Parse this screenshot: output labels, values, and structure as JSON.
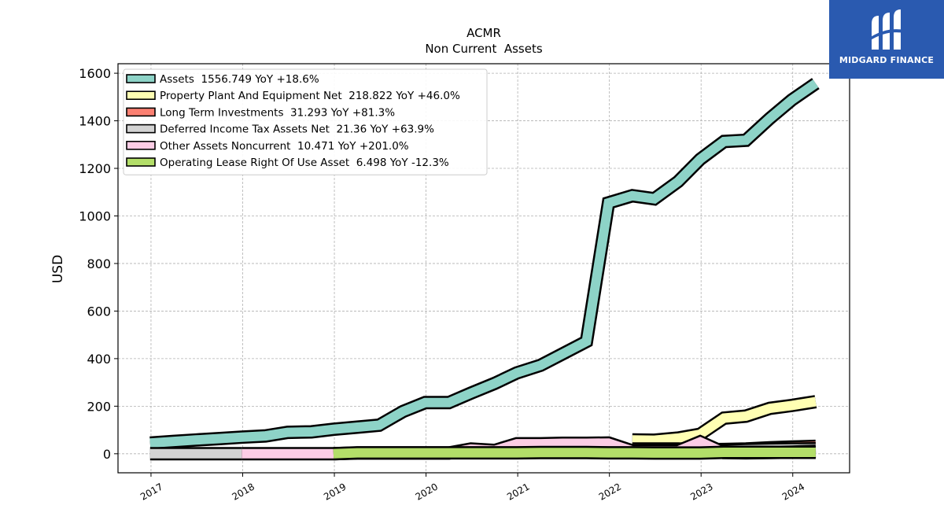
{
  "brand": {
    "name": "MIDGARD FINANCE",
    "icon": "midgard-logo-icon",
    "color": "#2a5ab0"
  },
  "chart_data": {
    "type": "area",
    "title": "ACMR",
    "subtitle": "Non Current  Assets",
    "ylabel": "USD",
    "xlabel": "",
    "ylim": [
      -80,
      1640
    ],
    "xlim": [
      2016.64,
      2024.62
    ],
    "yticks": [
      0,
      200,
      400,
      600,
      800,
      1000,
      1200,
      1400,
      1600
    ],
    "xticks": [
      "2017",
      "2018",
      "2019",
      "2020",
      "2021",
      "2022",
      "2023",
      "2024"
    ],
    "grid": true,
    "legend_position": "top-left",
    "x": [
      2016.99,
      2017.25,
      2017.49,
      2017.75,
      2017.99,
      2018.25,
      2018.49,
      2018.75,
      2018.99,
      2019.25,
      2019.49,
      2019.75,
      2019.99,
      2020.25,
      2020.49,
      2020.75,
      2020.99,
      2021.25,
      2021.49,
      2021.75,
      2021.99,
      2022.25,
      2022.49,
      2022.75,
      2022.99,
      2023.25,
      2023.49,
      2023.75,
      2023.99,
      2024.25
    ],
    "series": [
      {
        "name": "Assets  1556.749 YoY +18.6%",
        "color": "#8dd3c7",
        "values": [
          45,
          52,
          58,
          64,
          70,
          75,
          90,
          92,
          103,
          112,
          120,
          178,
          215,
          215,
          255,
          296,
          340,
          372,
          420,
          472,
          1055,
          1085,
          1072,
          1145,
          1238,
          1313,
          1318,
          1410,
          1488,
          1557
        ]
      },
      {
        "name": "Property Plant And Equipment Net  218.822 YoY +46.0%",
        "color": "#ffffb3",
        "values": [
          null,
          null,
          null,
          null,
          null,
          null,
          null,
          null,
          null,
          null,
          null,
          null,
          null,
          null,
          null,
          null,
          null,
          null,
          null,
          null,
          null,
          58,
          57,
          66,
          82,
          150,
          158,
          191,
          203,
          219
        ]
      },
      {
        "name": "Long Term Investments  31.293 YoY +81.3%",
        "color": "#fb8072",
        "values": [
          null,
          null,
          null,
          null,
          null,
          null,
          null,
          null,
          null,
          null,
          null,
          null,
          null,
          null,
          null,
          null,
          null,
          null,
          null,
          null,
          null,
          20,
          20,
          20,
          17,
          18,
          20,
          25,
          28,
          31
        ]
      },
      {
        "name": "Deferred Income Tax Assets Net  21.36 YoY +63.9%",
        "color": "#d3d3d3",
        "values": [
          0,
          0,
          0,
          0,
          0,
          null,
          null,
          null,
          null,
          null,
          null,
          null,
          null,
          null,
          null,
          null,
          null,
          null,
          null,
          null,
          10,
          12,
          13,
          13,
          13,
          14,
          17,
          19,
          20,
          21
        ]
      },
      {
        "name": "Other Assets Noncurrent  10.471 YoY +201.0%",
        "color": "#fccde5",
        "values": [
          null,
          null,
          null,
          null,
          0,
          0,
          0,
          0,
          0,
          3,
          3,
          3,
          3,
          3,
          20,
          14,
          42,
          42,
          44,
          44,
          45,
          12,
          12,
          12,
          50,
          5,
          4,
          5,
          7,
          10
        ]
      },
      {
        "name": "Operating Lease Right Of Use Asset  6.498 YoY -12.3%",
        "color": "#b3de69",
        "values": [
          null,
          null,
          null,
          null,
          null,
          null,
          null,
          null,
          0,
          4,
          4,
          4,
          4,
          4,
          4,
          4,
          4,
          5,
          5,
          5,
          4,
          4,
          3,
          3,
          3,
          6,
          6,
          6,
          6,
          6
        ]
      }
    ]
  }
}
